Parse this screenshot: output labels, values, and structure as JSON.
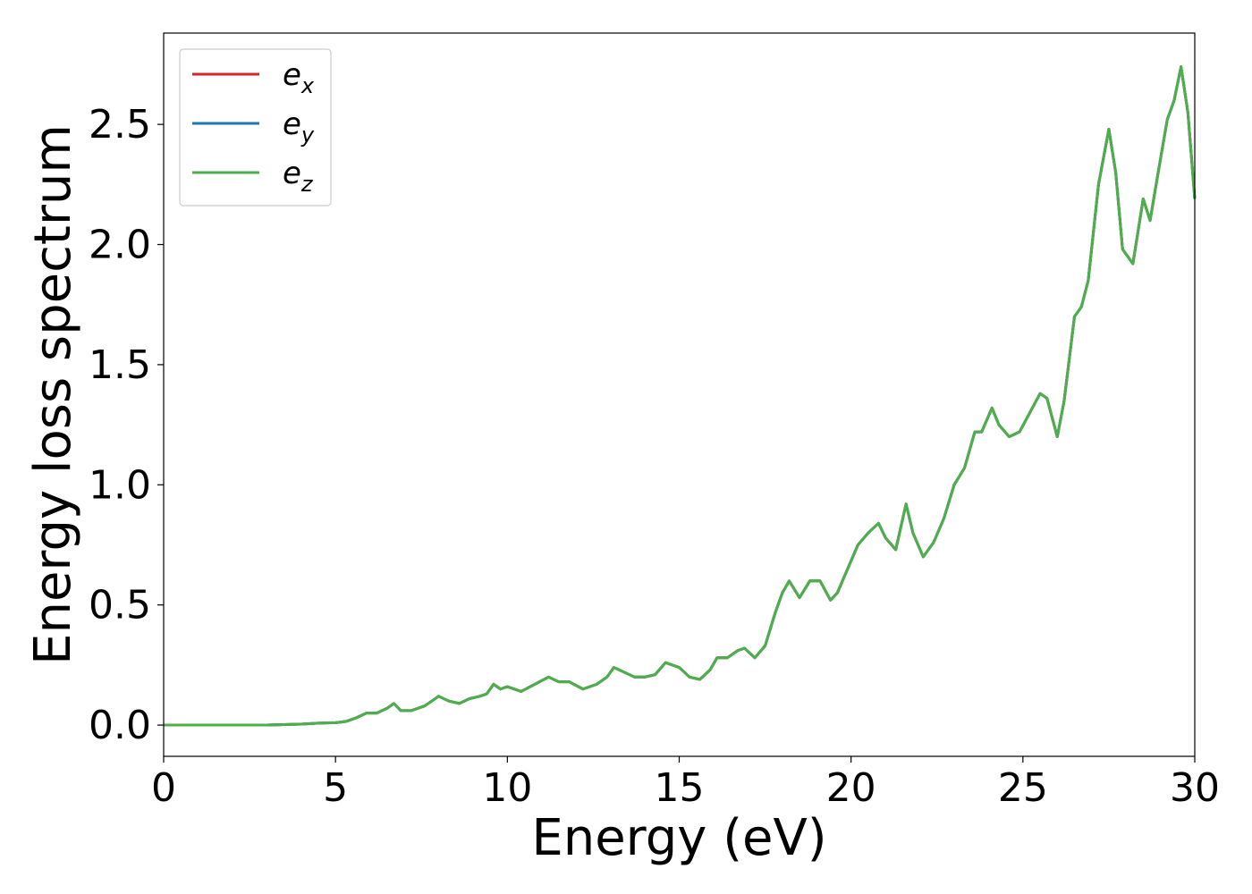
{
  "chart_data": {
    "type": "line",
    "xlabel": "Energy (eV)",
    "ylabel": "Energy loss spectrum",
    "xlim": [
      0,
      30
    ],
    "ylim": [
      -0.13,
      2.88
    ],
    "xticks": [
      "0",
      "5",
      "10",
      "15",
      "20",
      "25",
      "30"
    ],
    "yticks": [
      "0.0",
      "0.5",
      "1.0",
      "1.5",
      "2.0",
      "2.5"
    ],
    "grid": false,
    "legend_position": "top-left",
    "x": [
      0,
      1,
      2,
      3,
      3.5,
      4,
      4.5,
      5,
      5.3,
      5.6,
      5.9,
      6.2,
      6.5,
      6.7,
      6.9,
      7.2,
      7.6,
      8.0,
      8.3,
      8.6,
      8.9,
      9.2,
      9.4,
      9.6,
      9.8,
      10.0,
      10.4,
      10.8,
      11.2,
      11.5,
      11.8,
      12.2,
      12.6,
      12.9,
      13.1,
      13.4,
      13.7,
      14.0,
      14.3,
      14.6,
      14.8,
      15.0,
      15.3,
      15.6,
      15.9,
      16.1,
      16.4,
      16.7,
      16.9,
      17.2,
      17.5,
      17.8,
      18.0,
      18.2,
      18.5,
      18.8,
      19.1,
      19.4,
      19.6,
      19.9,
      20.2,
      20.5,
      20.8,
      21.0,
      21.3,
      21.6,
      21.8,
      22.1,
      22.4,
      22.7,
      23.0,
      23.3,
      23.6,
      23.8,
      24.1,
      24.3,
      24.6,
      24.9,
      25.2,
      25.5,
      25.7,
      26.0,
      26.2,
      26.5,
      26.7,
      26.9,
      27.2,
      27.5,
      27.7,
      27.9,
      28.2,
      28.5,
      28.7,
      28.9,
      29.2,
      29.4,
      29.6,
      29.8,
      30.0
    ],
    "series": [
      {
        "name": "e_x",
        "color": "#d62728",
        "values": [
          0,
          0,
          0,
          0,
          0.002,
          0.004,
          0.008,
          0.01,
          0.015,
          0.03,
          0.05,
          0.05,
          0.07,
          0.09,
          0.06,
          0.06,
          0.08,
          0.12,
          0.1,
          0.09,
          0.11,
          0.12,
          0.13,
          0.17,
          0.15,
          0.16,
          0.14,
          0.17,
          0.2,
          0.18,
          0.18,
          0.15,
          0.17,
          0.2,
          0.24,
          0.22,
          0.2,
          0.2,
          0.21,
          0.26,
          0.25,
          0.24,
          0.2,
          0.19,
          0.23,
          0.28,
          0.28,
          0.31,
          0.32,
          0.28,
          0.33,
          0.47,
          0.55,
          0.6,
          0.53,
          0.6,
          0.6,
          0.52,
          0.55,
          0.65,
          0.75,
          0.8,
          0.84,
          0.78,
          0.73,
          0.92,
          0.8,
          0.7,
          0.76,
          0.86,
          1.0,
          1.07,
          1.22,
          1.22,
          1.32,
          1.25,
          1.2,
          1.22,
          1.3,
          1.38,
          1.36,
          1.2,
          1.35,
          1.7,
          1.74,
          1.85,
          2.25,
          2.48,
          2.3,
          1.98,
          1.92,
          2.19,
          2.1,
          2.27,
          2.52,
          2.6,
          2.74,
          2.55,
          2.19
        ]
      },
      {
        "name": "e_y",
        "color": "#1f77b4",
        "values": [
          0,
          0,
          0,
          0,
          0.002,
          0.004,
          0.008,
          0.01,
          0.015,
          0.03,
          0.05,
          0.05,
          0.07,
          0.09,
          0.06,
          0.06,
          0.08,
          0.12,
          0.1,
          0.09,
          0.11,
          0.12,
          0.13,
          0.17,
          0.15,
          0.16,
          0.14,
          0.17,
          0.2,
          0.18,
          0.18,
          0.15,
          0.17,
          0.2,
          0.24,
          0.22,
          0.2,
          0.2,
          0.21,
          0.26,
          0.25,
          0.24,
          0.2,
          0.19,
          0.23,
          0.28,
          0.28,
          0.31,
          0.32,
          0.28,
          0.33,
          0.47,
          0.55,
          0.6,
          0.53,
          0.6,
          0.6,
          0.52,
          0.55,
          0.65,
          0.75,
          0.8,
          0.84,
          0.78,
          0.73,
          0.92,
          0.8,
          0.7,
          0.76,
          0.86,
          1.0,
          1.07,
          1.22,
          1.22,
          1.32,
          1.25,
          1.2,
          1.22,
          1.3,
          1.38,
          1.36,
          1.2,
          1.35,
          1.7,
          1.74,
          1.85,
          2.25,
          2.48,
          2.3,
          1.98,
          1.92,
          2.19,
          2.1,
          2.27,
          2.52,
          2.6,
          2.74,
          2.55,
          2.19
        ]
      },
      {
        "name": "e_z",
        "color": "#4daf4a",
        "values": [
          0,
          0,
          0,
          0,
          0.002,
          0.004,
          0.008,
          0.01,
          0.015,
          0.03,
          0.05,
          0.05,
          0.07,
          0.09,
          0.06,
          0.06,
          0.08,
          0.12,
          0.1,
          0.09,
          0.11,
          0.12,
          0.13,
          0.17,
          0.15,
          0.16,
          0.14,
          0.17,
          0.2,
          0.18,
          0.18,
          0.15,
          0.17,
          0.2,
          0.24,
          0.22,
          0.2,
          0.2,
          0.21,
          0.26,
          0.25,
          0.24,
          0.2,
          0.19,
          0.23,
          0.28,
          0.28,
          0.31,
          0.32,
          0.28,
          0.33,
          0.47,
          0.55,
          0.6,
          0.53,
          0.6,
          0.6,
          0.52,
          0.55,
          0.65,
          0.75,
          0.8,
          0.84,
          0.78,
          0.73,
          0.92,
          0.8,
          0.7,
          0.76,
          0.86,
          1.0,
          1.07,
          1.22,
          1.22,
          1.32,
          1.25,
          1.2,
          1.22,
          1.3,
          1.38,
          1.36,
          1.2,
          1.35,
          1.7,
          1.74,
          1.85,
          2.25,
          2.48,
          2.3,
          1.98,
          1.92,
          2.19,
          2.1,
          2.27,
          2.52,
          2.6,
          2.74,
          2.55,
          2.19
        ]
      }
    ],
    "legend": [
      {
        "base": "e",
        "sub": "x",
        "color": "#d62728"
      },
      {
        "base": "e",
        "sub": "y",
        "color": "#1f77b4"
      },
      {
        "base": "e",
        "sub": "z",
        "color": "#4daf4a"
      }
    ]
  }
}
